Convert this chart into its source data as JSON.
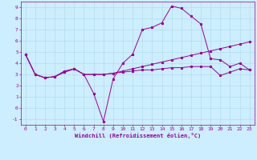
{
  "xlabel": "Windchill (Refroidissement éolien,°C)",
  "background_color": "#cceeff",
  "grid_color": "#b0d8e8",
  "line_color": "#990099",
  "xlim": [
    -0.5,
    23.5
  ],
  "ylim": [
    -1.5,
    9.5
  ],
  "xticks": [
    0,
    1,
    2,
    3,
    4,
    5,
    6,
    7,
    8,
    9,
    10,
    11,
    12,
    13,
    14,
    15,
    16,
    17,
    18,
    19,
    20,
    21,
    22,
    23
  ],
  "yticks": [
    -1,
    0,
    1,
    2,
    3,
    4,
    5,
    6,
    7,
    8,
    9
  ],
  "line1_x": [
    0,
    1,
    2,
    3,
    4,
    5,
    6,
    7,
    8,
    9,
    10,
    11,
    12,
    13,
    14,
    15,
    16,
    17,
    18,
    19,
    20,
    21,
    22,
    23
  ],
  "line1_y": [
    4.8,
    3.0,
    2.7,
    2.8,
    3.3,
    3.5,
    3.0,
    1.3,
    -1.2,
    2.6,
    4.0,
    4.8,
    7.0,
    7.2,
    7.6,
    9.1,
    8.9,
    8.2,
    7.5,
    4.4,
    4.3,
    3.7,
    4.0,
    3.4
  ],
  "line2_x": [
    0,
    1,
    2,
    3,
    4,
    5,
    6,
    7,
    8,
    9,
    10,
    11,
    12,
    13,
    14,
    15,
    16,
    17,
    18,
    19,
    20,
    21,
    22,
    23
  ],
  "line2_y": [
    4.8,
    3.0,
    2.7,
    2.8,
    3.2,
    3.5,
    3.0,
    3.0,
    3.0,
    3.1,
    3.3,
    3.5,
    3.7,
    3.9,
    4.1,
    4.3,
    4.5,
    4.7,
    4.9,
    5.1,
    5.3,
    5.5,
    5.7,
    5.9
  ],
  "line3_x": [
    0,
    1,
    2,
    3,
    4,
    5,
    6,
    7,
    8,
    9,
    10,
    11,
    12,
    13,
    14,
    15,
    16,
    17,
    18,
    19,
    20,
    21,
    22,
    23
  ],
  "line3_y": [
    4.8,
    3.0,
    2.7,
    2.8,
    3.2,
    3.5,
    3.0,
    3.0,
    3.0,
    3.1,
    3.2,
    3.3,
    3.4,
    3.4,
    3.5,
    3.6,
    3.6,
    3.7,
    3.7,
    3.7,
    2.9,
    3.2,
    3.5,
    3.4
  ],
  "marker_size": 2.0,
  "line_width": 0.7,
  "tick_fontsize": 4.5,
  "xlabel_fontsize": 5.0
}
